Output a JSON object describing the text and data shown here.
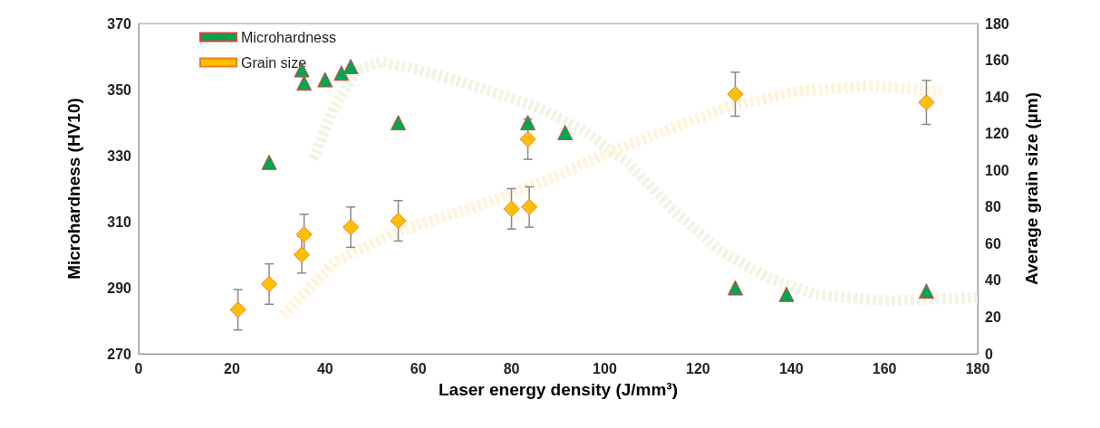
{
  "chart_data": {
    "type": "scatter",
    "xlabel": "Laser energy density (J/mm³)",
    "ylabel": "Microhardness (HV10)",
    "y2label": "Average grain size (µm)",
    "xlim": [
      0,
      180
    ],
    "xticks": [
      0,
      20,
      40,
      60,
      80,
      100,
      120,
      140,
      160,
      180
    ],
    "ylim": [
      270,
      370
    ],
    "yticks": [
      270,
      290,
      310,
      330,
      350,
      370
    ],
    "y2lim": [
      0,
      180
    ],
    "y2ticks": [
      0,
      20,
      40,
      60,
      80,
      100,
      120,
      140,
      160,
      180
    ],
    "grid": false,
    "legend": "top left",
    "series": [
      {
        "type": "line",
        "color": "#eef6e4",
        "line_style": "dashed",
        "marker": "none",
        "x": [
          37.5,
          42,
          47,
          52,
          60,
          70,
          85,
          95,
          105,
          115,
          125,
          135,
          145,
          160,
          180
        ],
        "values": [
          329,
          345,
          356,
          358.5,
          356,
          352,
          345,
          338,
          328,
          313,
          301,
          293,
          288,
          286,
          287
        ]
      },
      {
        "type": "line",
        "color": "#fff3d9",
        "line_style": "dashed",
        "marker": "none",
        "axis": "y2",
        "x": [
          31,
          42,
          56,
          71,
          87,
          102,
          126,
          141,
          157,
          172
        ],
        "values": [
          21,
          50,
          67,
          79,
          94,
          111,
          134,
          143,
          146,
          143
        ]
      },
      {
        "name": "Microhardness",
        "color": "#00a651",
        "marker": "triangle",
        "x": [
          28,
          35,
          35.5,
          40,
          43.5,
          45.5,
          55.7,
          83.5,
          91.5,
          128,
          139,
          169
        ],
        "values": [
          328,
          356,
          352,
          353,
          355,
          357,
          340,
          340,
          337,
          290,
          288,
          289
        ]
      },
      {
        "name": "Grain size",
        "color": "#ffc000",
        "marker": "diamond",
        "axis": "y2",
        "x": [
          21.3,
          28,
          35,
          35.5,
          45.5,
          55.7,
          80,
          83.8,
          83.5,
          128,
          169
        ],
        "values": [
          24,
          38,
          54,
          65,
          69,
          72.5,
          79,
          80,
          117,
          141.5,
          137
        ],
        "errors": [
          11,
          11,
          10,
          11,
          11,
          11,
          11,
          11,
          11,
          12,
          12
        ]
      }
    ]
  }
}
